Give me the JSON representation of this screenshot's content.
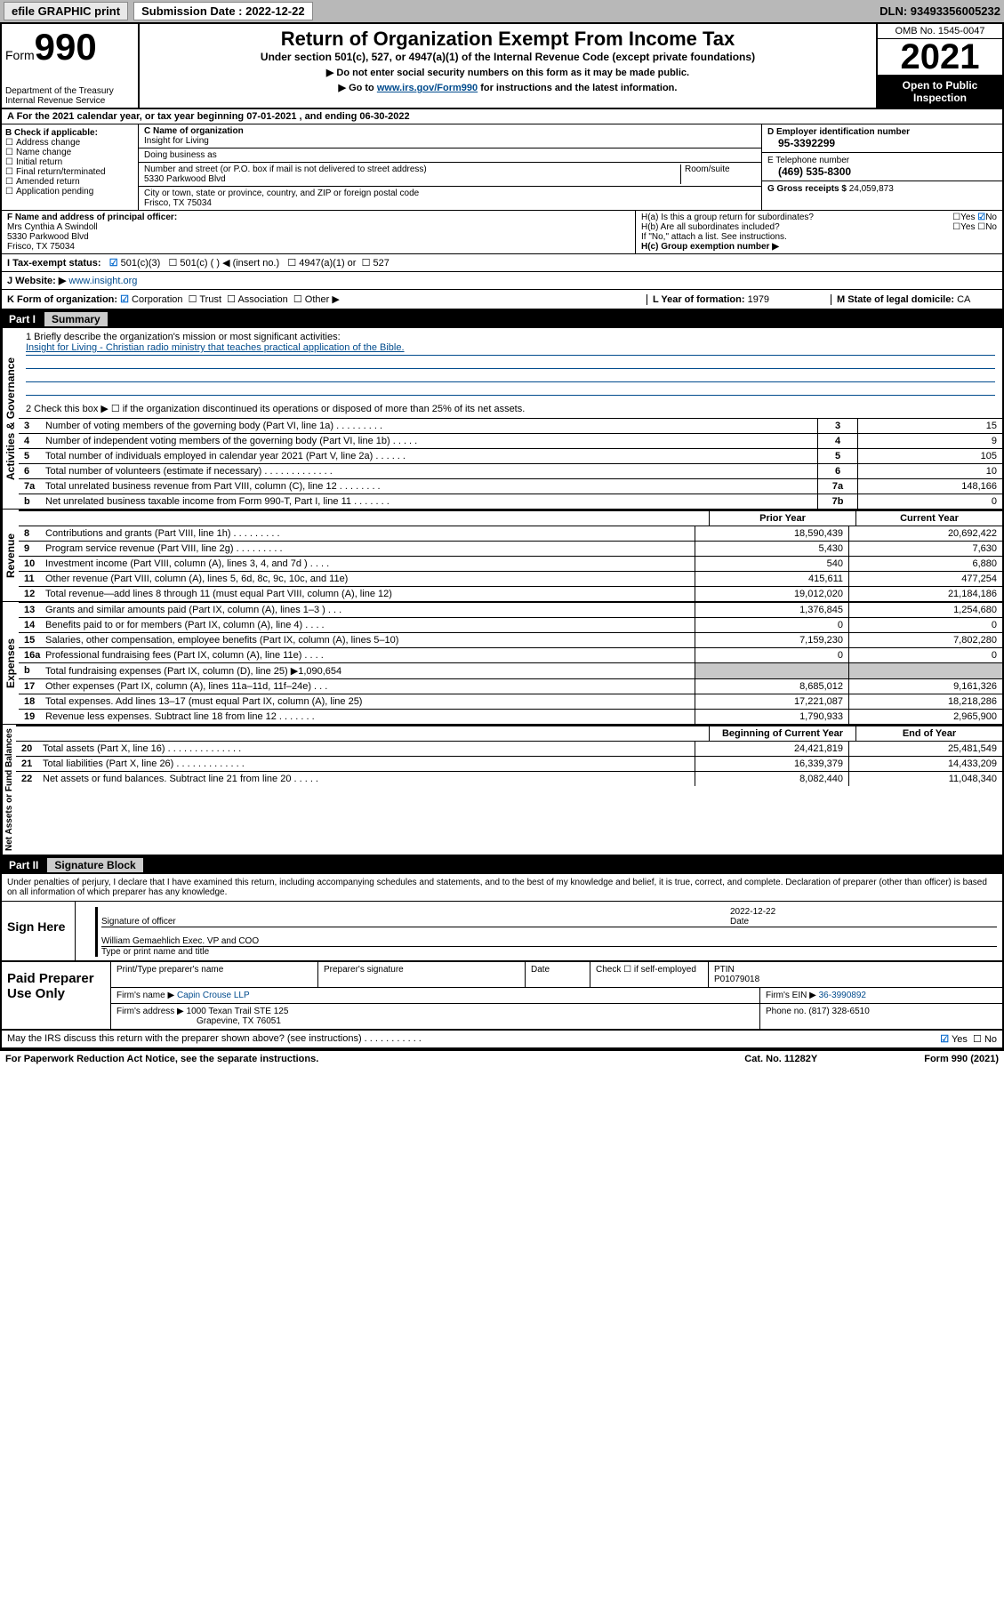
{
  "topbar": {
    "efile_label": "efile GRAPHIC print",
    "submission_label": "Submission Date : 2022-12-22",
    "dln": "DLN: 93493356005232"
  },
  "header": {
    "form_word": "Form",
    "form_no": "990",
    "dept": "Department of the Treasury",
    "irs": "Internal Revenue Service",
    "title": "Return of Organization Exempt From Income Tax",
    "subtitle": "Under section 501(c), 527, or 4947(a)(1) of the Internal Revenue Code (except private foundations)",
    "note1": "▶ Do not enter social security numbers on this form as it may be made public.",
    "note2_pre": "▶ Go to ",
    "note2_link": "www.irs.gov/Form990",
    "note2_post": " for instructions and the latest information.",
    "omb": "OMB No. 1545-0047",
    "year": "2021",
    "open_pub": "Open to Public Inspection"
  },
  "a_line": "A For the 2021 calendar year, or tax year beginning 07-01-2021  , and ending 06-30-2022",
  "section_b": {
    "label": "B Check if applicable:",
    "items": [
      "Address change",
      "Name change",
      "Initial return",
      "Final return/terminated",
      "Amended return",
      "Application pending"
    ]
  },
  "section_c": {
    "name_label": "C Name of organization",
    "name": "Insight for Living",
    "dba_label": "Doing business as",
    "dba": "",
    "addr_label": "Number and street (or P.O. box if mail is not delivered to street address)",
    "room_label": "Room/suite",
    "addr": "5330 Parkwood Blvd",
    "city_label": "City or town, state or province, country, and ZIP or foreign postal code",
    "city": "Frisco, TX  75034"
  },
  "section_d": {
    "label": "D Employer identification number",
    "value": "95-3392299"
  },
  "section_e": {
    "label": "E Telephone number",
    "value": "(469) 535-8300"
  },
  "section_g": {
    "label": "G Gross receipts $",
    "value": "24,059,873"
  },
  "section_f": {
    "label": "F Name and address of principal officer:",
    "name": "Mrs Cynthia A Swindoll",
    "addr": "5330 Parkwood Blvd",
    "city": "Frisco, TX  75034"
  },
  "section_h": {
    "ha": "H(a)  Is this a group return for subordinates?",
    "hb": "H(b)  Are all subordinates included?",
    "hb_note": "If \"No,\" attach a list. See instructions.",
    "hc": "H(c)  Group exemption number ▶",
    "yes": "Yes",
    "no": "No"
  },
  "section_i": {
    "label": "I  Tax-exempt status:",
    "c3": "501(c)(3)",
    "c": "501(c) (  ) ◀ (insert no.)",
    "a1": "4947(a)(1) or",
    "s527": "527"
  },
  "section_j": {
    "label": "J  Website: ▶",
    "value": "www.insight.org"
  },
  "section_k": {
    "label": "K Form of organization:",
    "corp": "Corporation",
    "trust": "Trust",
    "assoc": "Association",
    "other": "Other ▶"
  },
  "section_l": {
    "label": "L Year of formation:",
    "value": "1979"
  },
  "section_m": {
    "label": "M State of legal domicile:",
    "value": "CA"
  },
  "part1": {
    "tag": "Part I",
    "title": "Summary",
    "mission_label": "1  Briefly describe the organization's mission or most significant activities:",
    "mission": "Insight for Living - Christian radio ministry that teaches practical application of the Bible.",
    "line2": "2   Check this box ▶ ☐  if the organization discontinued its operations or disposed of more than 25% of its net assets.",
    "governance_rows": [
      {
        "ln": "3",
        "desc": "Number of voting members of the governing body (Part VI, line 1a)   .   .   .   .   .   .   .   .   .",
        "box": "3",
        "val": "15"
      },
      {
        "ln": "4",
        "desc": "Number of independent voting members of the governing body (Part VI, line 1b)   .   .   .   .   .",
        "box": "4",
        "val": "9"
      },
      {
        "ln": "5",
        "desc": "Total number of individuals employed in calendar year 2021 (Part V, line 2a)   .   .   .   .   .   .",
        "box": "5",
        "val": "105"
      },
      {
        "ln": "6",
        "desc": "Total number of volunteers (estimate if necessary)   .   .   .   .   .   .   .   .   .   .   .   .   .",
        "box": "6",
        "val": "10"
      },
      {
        "ln": "7a",
        "desc": "Total unrelated business revenue from Part VIII, column (C), line 12   .   .   .   .   .   .   .   .",
        "box": "7a",
        "val": "148,166"
      },
      {
        "ln": " b",
        "desc": "Net unrelated business taxable income from Form 990-T, Part I, line 11   .   .   .   .   .   .   .",
        "box": "7b",
        "val": "0"
      }
    ],
    "header_py": "Prior Year",
    "header_cy": "Current Year",
    "revenue_rows": [
      {
        "ln": "8",
        "desc": "Contributions and grants (Part VIII, line 1h)   .   .   .   .   .   .   .   .   .",
        "py": "18,590,439",
        "cy": "20,692,422"
      },
      {
        "ln": "9",
        "desc": "Program service revenue (Part VIII, line 2g)   .   .   .   .   .   .   .   .   .",
        "py": "5,430",
        "cy": "7,630"
      },
      {
        "ln": "10",
        "desc": "Investment income (Part VIII, column (A), lines 3, 4, and 7d )   .   .   .   .",
        "py": "540",
        "cy": "6,880"
      },
      {
        "ln": "11",
        "desc": "Other revenue (Part VIII, column (A), lines 5, 6d, 8c, 9c, 10c, and 11e)",
        "py": "415,611",
        "cy": "477,254"
      },
      {
        "ln": "12",
        "desc": "Total revenue—add lines 8 through 11 (must equal Part VIII, column (A), line 12)",
        "py": "19,012,020",
        "cy": "21,184,186"
      }
    ],
    "expense_rows": [
      {
        "ln": "13",
        "desc": "Grants and similar amounts paid (Part IX, column (A), lines 1–3 )   .   .   .",
        "py": "1,376,845",
        "cy": "1,254,680"
      },
      {
        "ln": "14",
        "desc": "Benefits paid to or for members (Part IX, column (A), line 4)   .   .   .   .",
        "py": "0",
        "cy": "0"
      },
      {
        "ln": "15",
        "desc": "Salaries, other compensation, employee benefits (Part IX, column (A), lines 5–10)",
        "py": "7,159,230",
        "cy": "7,802,280"
      },
      {
        "ln": "16a",
        "desc": "Professional fundraising fees (Part IX, column (A), line 11e)   .   .   .   .",
        "py": "0",
        "cy": "0"
      },
      {
        "ln": " b",
        "desc": "Total fundraising expenses (Part IX, column (D), line 25) ▶1,090,654",
        "py": "",
        "cy": "",
        "shaded": true
      },
      {
        "ln": "17",
        "desc": "Other expenses (Part IX, column (A), lines 11a–11d, 11f–24e)   .   .   .",
        "py": "8,685,012",
        "cy": "9,161,326"
      },
      {
        "ln": "18",
        "desc": "Total expenses. Add lines 13–17 (must equal Part IX, column (A), line 25)",
        "py": "17,221,087",
        "cy": "18,218,286"
      },
      {
        "ln": "19",
        "desc": "Revenue less expenses. Subtract line 18 from line 12   .   .   .   .   .   .   .",
        "py": "1,790,933",
        "cy": "2,965,900"
      }
    ],
    "header_boy": "Beginning of Current Year",
    "header_eoy": "End of Year",
    "net_rows": [
      {
        "ln": "20",
        "desc": "Total assets (Part X, line 16)   .   .   .   .   .   .   .   .   .   .   .   .   .   .",
        "py": "24,421,819",
        "cy": "25,481,549"
      },
      {
        "ln": "21",
        "desc": "Total liabilities (Part X, line 26)   .   .   .   .   .   .   .   .   .   .   .   .   .",
        "py": "16,339,379",
        "cy": "14,433,209"
      },
      {
        "ln": "22",
        "desc": "Net assets or fund balances. Subtract line 21 from line 20   .   .   .   .   .",
        "py": "8,082,440",
        "cy": "11,048,340"
      }
    ]
  },
  "vert_labels": {
    "ag": "Activities & Governance",
    "rev": "Revenue",
    "exp": "Expenses",
    "net": "Net Assets or Fund Balances"
  },
  "part2": {
    "tag": "Part II",
    "title": "Signature Block",
    "penalties": "Under penalties of perjury, I declare that I have examined this return, including accompanying schedules and statements, and to the best of my knowledge and belief, it is true, correct, and complete. Declaration of preparer (other than officer) is based on all information of which preparer has any knowledge.",
    "sign_here": "Sign Here",
    "sig_officer": "Signature of officer",
    "sig_date": "Date",
    "sig_date_val": "2022-12-22",
    "name_title": "William Gemaehlich  Exec. VP and COO",
    "name_title_label": "Type or print name and title",
    "paid_prep": "Paid Preparer Use Only",
    "prep_name_label": "Print/Type preparer's name",
    "prep_sig_label": "Preparer's signature",
    "date_label": "Date",
    "check_self": "Check ☐ if self-employed",
    "ptin_label": "PTIN",
    "ptin": "P01079018",
    "firm_name_label": "Firm's name    ▶",
    "firm_name": "Capin Crouse LLP",
    "firm_ein_label": "Firm's EIN ▶",
    "firm_ein": "36-3990892",
    "firm_addr_label": "Firm's address ▶",
    "firm_addr": "1000 Texan Trail STE 125",
    "firm_city": "Grapevine, TX  76051",
    "phone_label": "Phone no.",
    "phone": "(817) 328-6510",
    "discuss": "May the IRS discuss this return with the preparer shown above? (see instructions)   .   .   .   .   .   .   .   .   .   .   .",
    "yes": "Yes",
    "no": "No"
  },
  "footer": {
    "left": "For Paperwork Reduction Act Notice, see the separate instructions.",
    "mid": "Cat. No. 11282Y",
    "right": "Form 990 (2021)"
  }
}
